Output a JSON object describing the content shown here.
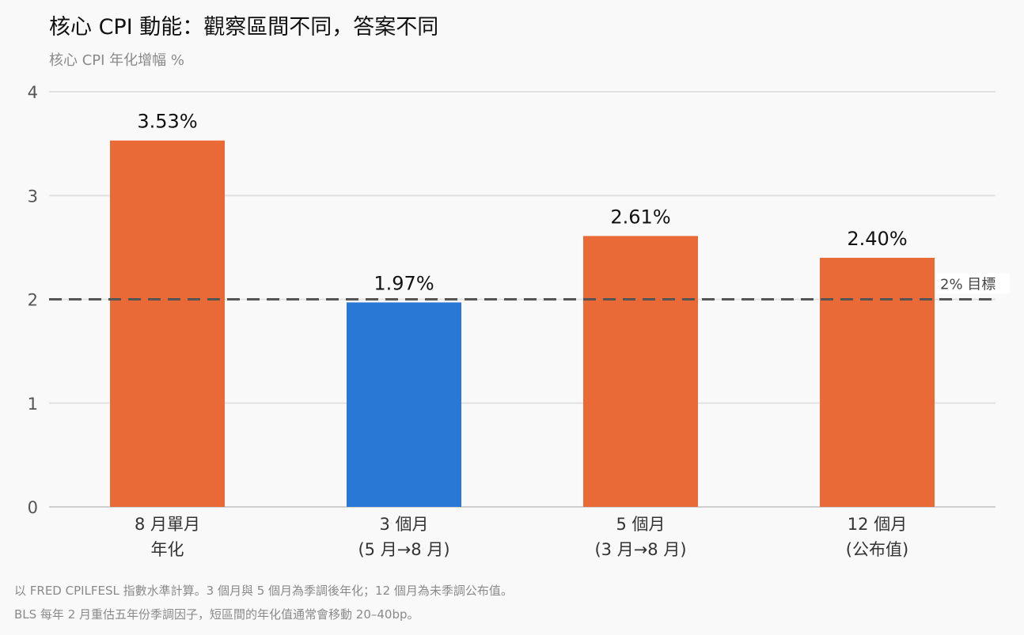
{
  "title": "核心 CPI 動能：觀察區間不同，答案不同",
  "subtitle": "核心 CPI 年化增幅 %",
  "footnotes": [
    "以 FRED CPILFESL 指數水準計算。3 個月與 5 個月為季調後年化；12 個月為未季調公布值。",
    "BLS 每年 2 月重估五年份季調因子，短區間的年化值通常會移動 20–40bp。"
  ],
  "chart_data": {
    "type": "bar",
    "categories": [
      [
        "8 月單月",
        "年化"
      ],
      [
        "3 個月",
        "(5 月→8 月)"
      ],
      [
        "5 個月",
        "(3 月→8 月)"
      ],
      [
        "12 個月",
        "(公布值)"
      ]
    ],
    "values": [
      3.53,
      1.97,
      2.61,
      2.4
    ],
    "value_labels": [
      "3.53%",
      "1.97%",
      "2.61%",
      "2.40%"
    ],
    "bar_colors": [
      "#e96a36",
      "#2a78d6",
      "#e96a36",
      "#e96a36"
    ],
    "yticks": [
      0,
      1,
      2,
      3,
      4
    ],
    "ylim": [
      0,
      4
    ],
    "grid": true,
    "reference_line": {
      "value": 2,
      "label": "2% 目標",
      "style": "dashed",
      "color": "#555555"
    }
  }
}
